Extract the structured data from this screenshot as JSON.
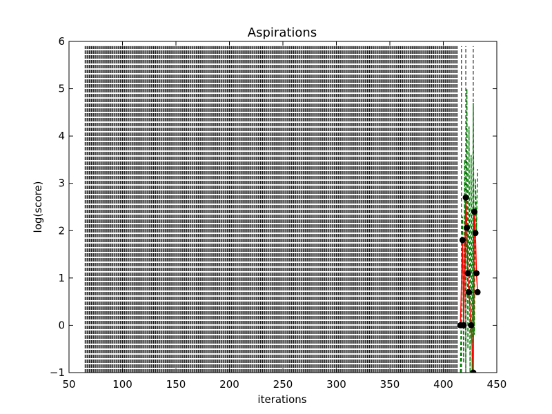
{
  "chart_data": {
    "type": "line",
    "title": "Aspirations",
    "xlabel": "iterations",
    "ylabel": "log(score)",
    "xlim": [
      50,
      450
    ],
    "ylim": [
      -1,
      6
    ],
    "xticks": [
      "50",
      "100",
      "150",
      "200",
      "250",
      "300",
      "350",
      "400",
      "450"
    ],
    "yticks": [
      "−1",
      "0",
      "1",
      "2",
      "3",
      "4",
      "5",
      "6"
    ],
    "grid": false,
    "legend": "none",
    "series": [
      {
        "style": "red solid line with black circle markers",
        "color": "#ff0000",
        "marker_color": "#000000",
        "x": [
          416,
          418,
          419,
          421,
          422,
          423,
          424,
          426,
          428,
          429,
          430,
          431,
          432
        ],
        "y": [
          0.0,
          1.8,
          0.0,
          2.7,
          2.06,
          1.1,
          0.7,
          0.0,
          -1.0,
          2.4,
          1.95,
          1.1,
          0.7
        ]
      },
      {
        "style": "green dashed line",
        "color": "#008000",
        "x": [
          416,
          418,
          419,
          420,
          421,
          422,
          423,
          424,
          425,
          426,
          427,
          428,
          429,
          430,
          431,
          432
        ],
        "y": [
          -1.0,
          2.3,
          -0.8,
          3.5,
          -1.0,
          5.0,
          -0.5,
          4.2,
          -1.0,
          3.6,
          -1.0,
          4.7,
          -0.2,
          3.1,
          2.0,
          3.3
        ]
      },
      {
        "style": "black dashed vertical lines at every iteration from 65 to 413",
        "color": "#000000",
        "x_range": [
          65,
          413
        ],
        "y_range": [
          -1,
          5.9
        ]
      },
      {
        "style": "black dashed vertical lines",
        "color": "#000000",
        "x": [
          417,
          421,
          428
        ],
        "y_range": [
          -1,
          5.9
        ]
      }
    ]
  }
}
